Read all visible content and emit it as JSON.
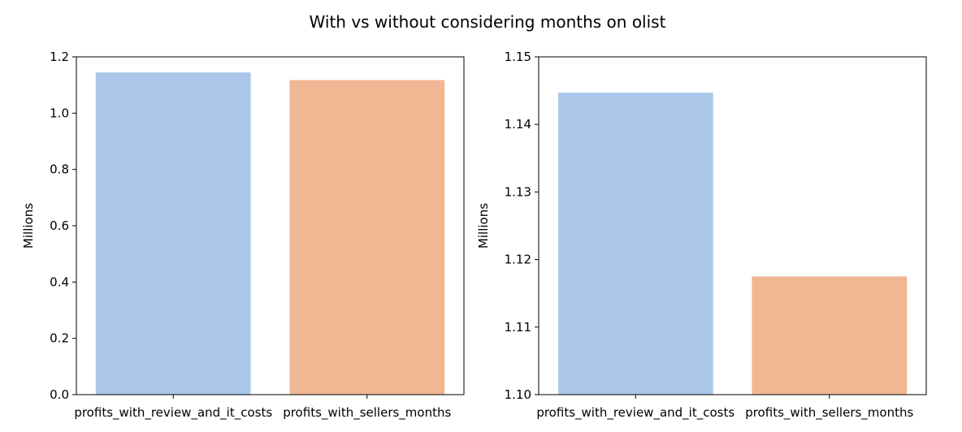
{
  "chart_data": {
    "suptitle": "With vs without considering months on olist",
    "colors": [
      "#abc8eb",
      "#f0b793"
    ],
    "charts": [
      {
        "type": "bar",
        "categories": [
          "profits_with_review_and_it_costs",
          "profits_with_sellers_months"
        ],
        "values": [
          1.1447,
          1.1175
        ],
        "ylabel": "Millions",
        "ylim": [
          0,
          1.2
        ],
        "yticks": [
          "0.0",
          "0.2",
          "0.4",
          "0.6",
          "0.8",
          "1.0",
          "1.2"
        ],
        "grid": false,
        "legend": false
      },
      {
        "type": "bar",
        "categories": [
          "profits_with_review_and_it_costs",
          "profits_with_sellers_months"
        ],
        "values": [
          1.1447,
          1.1175
        ],
        "ylabel": "Millions",
        "ylim": [
          1.1,
          1.15
        ],
        "yticks": [
          "1.10",
          "1.11",
          "1.12",
          "1.13",
          "1.14",
          "1.15"
        ],
        "grid": false,
        "legend": false
      }
    ]
  }
}
